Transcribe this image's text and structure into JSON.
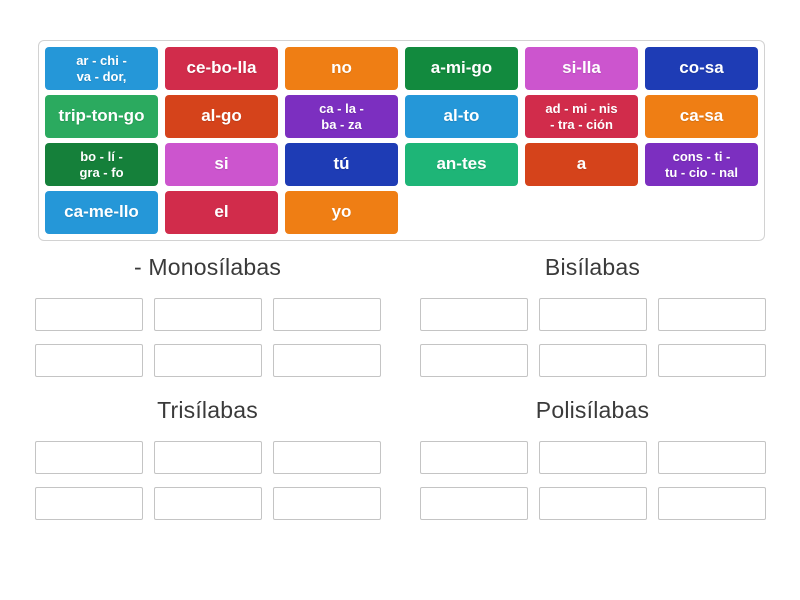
{
  "colors": {
    "lightblue": "#2597d8",
    "crimson": "#d12c4b",
    "orange": "#ef7e14",
    "green": "#128a3e",
    "orchid": "#cc55ce",
    "darkblue": "#1e3cb5",
    "emerald": "#2baa5f",
    "vermillion": "#d5431b",
    "purple": "#7c2fc0",
    "teal": "#1eb577",
    "darkgreen": "#15803a"
  },
  "tray": {
    "tiles": [
      {
        "label": "ar - chi -\nva - dor,",
        "color": "lightblue"
      },
      {
        "label": "ce-bo-lla",
        "color": "crimson"
      },
      {
        "label": "no",
        "color": "orange"
      },
      {
        "label": "a-mi-go",
        "color": "green"
      },
      {
        "label": "si-lla",
        "color": "orchid"
      },
      {
        "label": "co-sa",
        "color": "darkblue"
      },
      {
        "label": "trip-ton-go",
        "color": "emerald"
      },
      {
        "label": "al-go",
        "color": "vermillion"
      },
      {
        "label": "ca - la -\nba - za",
        "color": "purple"
      },
      {
        "label": "al-to",
        "color": "lightblue"
      },
      {
        "label": "ad - mi - nis\n- tra - ción",
        "color": "crimson"
      },
      {
        "label": "ca-sa",
        "color": "orange"
      },
      {
        "label": "bo - lí -\ngra - fo",
        "color": "darkgreen"
      },
      {
        "label": "si",
        "color": "orchid"
      },
      {
        "label": "tú",
        "color": "darkblue"
      },
      {
        "label": "an-tes",
        "color": "teal"
      },
      {
        "label": "a",
        "color": "vermillion"
      },
      {
        "label": "cons - ti -\ntu - cio - nal",
        "color": "purple"
      },
      {
        "label": "ca-me-llo",
        "color": "lightblue"
      },
      {
        "label": "el",
        "color": "crimson"
      },
      {
        "label": "yo",
        "color": "orange"
      }
    ]
  },
  "groups": [
    {
      "title": "- Monosílabas",
      "slot_count": 6
    },
    {
      "title": "Bisílabas",
      "slot_count": 6
    },
    {
      "title": "Trisílabas",
      "slot_count": 6
    },
    {
      "title": "Polisílabas",
      "slot_count": 6
    }
  ]
}
